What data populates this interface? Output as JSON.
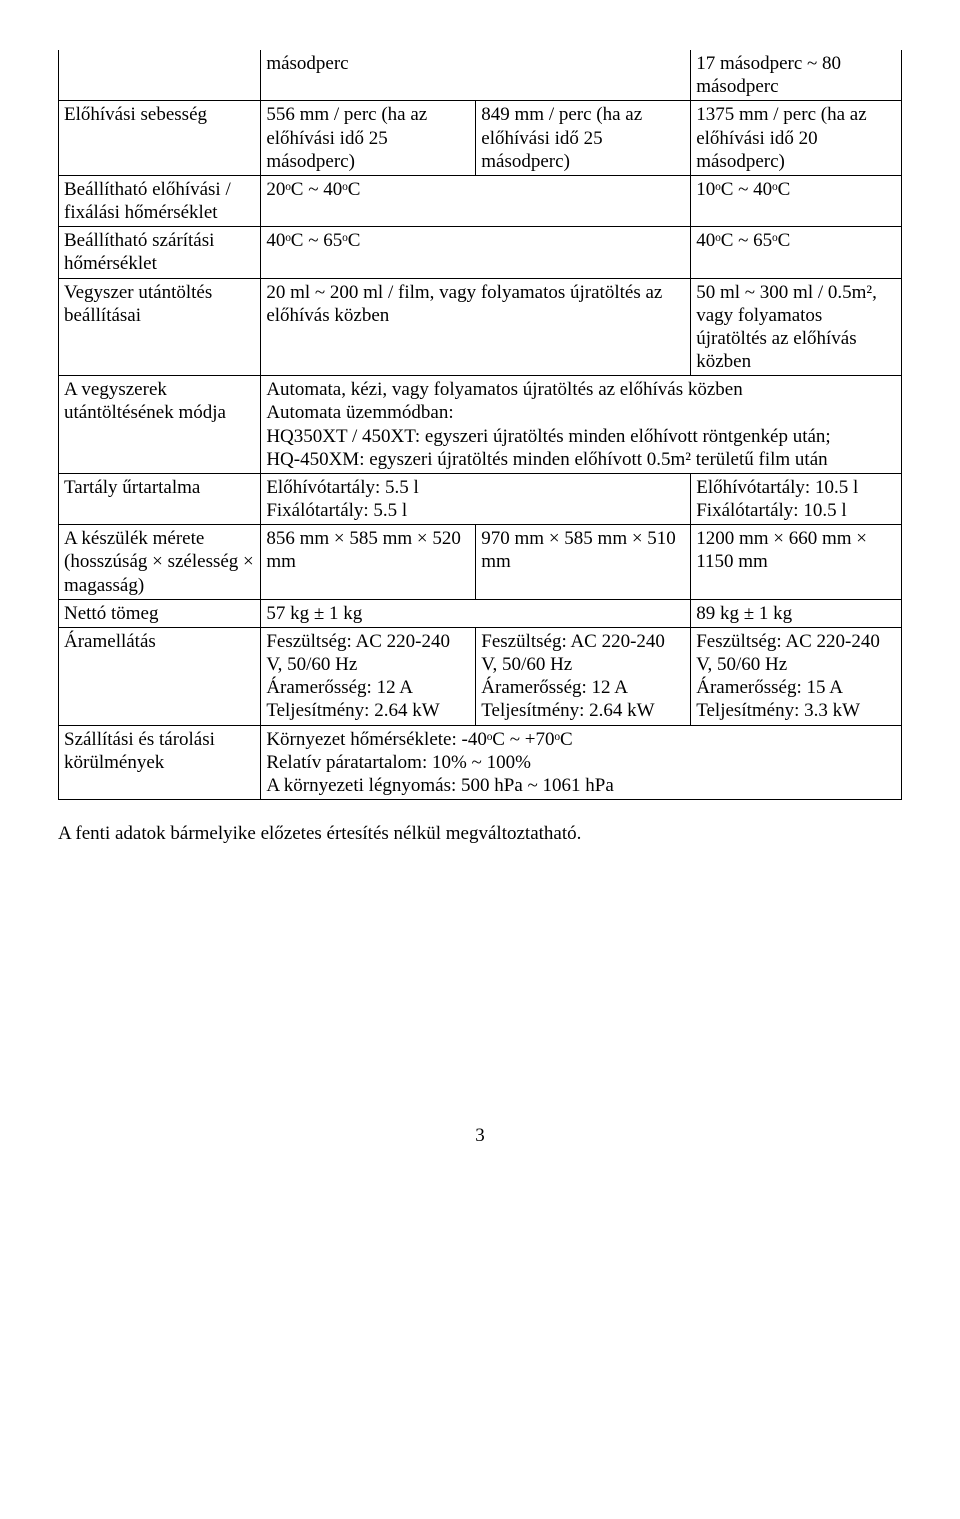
{
  "rows": {
    "r1": {
      "c1": "",
      "c2": "másodperc",
      "c3": "",
      "c4": "17 másodperc ~ 80 másodperc"
    },
    "r2": {
      "c1": "Előhívási sebesség",
      "c2": "556 mm / perc (ha az előhívási idő 25 másodperc)",
      "c3": "849 mm / perc (ha az előhívási idő 25 másodperc)",
      "c4": "1375 mm / perc (ha az előhívási idő 20 másodperc)"
    },
    "r3": {
      "c1": "Beállítható előhívási / fixálási hőmérséklet",
      "c2": "20ᵒC ~ 40ᵒC",
      "c4": "10ᵒC ~ 40ᵒC"
    },
    "r4": {
      "c1": "Beállítható szárítási hőmérséklet",
      "c2": "40ᵒC ~ 65ᵒC",
      "c4": "40ᵒC ~ 65ᵒC"
    },
    "r5": {
      "c1": "Vegyszer utántöltés beállításai",
      "c2": "20 ml ~ 200 ml / film, vagy folyamatos újratöltés az előhívás közben",
      "c4": "50 ml ~ 300 ml / 0.5m², vagy folyamatos újratöltés az előhívás közben"
    },
    "r6": {
      "c1": "A vegyszerek utántöltésének módja",
      "c2": "Automata, kézi, vagy folyamatos újratöltés az előhívás közben\nAutomata üzemmódban:\nHQ350XT / 450XT: egyszeri újratöltés minden előhívott röntgenkép után;\nHQ-450XM: egyszeri újratöltés minden előhívott 0.5m² területű film után"
    },
    "r7": {
      "c1": "Tartály űrtartalma",
      "c2": "Előhívótartály: 5.5 l\nFixálótartály: 5.5 l",
      "c4": "Előhívótartály: 10.5 l\nFixálótartály: 10.5 l"
    },
    "r8": {
      "c1": "A készülék mérete (hosszúság × szélesség × magasság)",
      "c2": "856 mm × 585 mm × 520 mm",
      "c3": "970 mm × 585 mm × 510 mm",
      "c4": "1200 mm × 660 mm × 1150 mm"
    },
    "r9": {
      "c1": "Nettó tömeg",
      "c2": " 57 kg ± 1 kg",
      "c4": "89 kg ± 1 kg"
    },
    "r10": {
      "c1": "Áramellátás",
      "c2": "Feszültség: AC 220-240 V, 50/60 Hz\nÁramerősség: 12 A\nTeljesítmény: 2.64 kW",
      "c3": "Feszültség: AC 220-240 V, 50/60 Hz\nÁramerősség: 12 A\nTeljesítmény: 2.64 kW",
      "c4": "Feszültség: AC 220-240 V, 50/60 Hz\nÁramerősség: 15 A\nTeljesítmény: 3.3 kW"
    },
    "r11": {
      "c1": "Szállítási és tárolási körülmények",
      "c2": "Környezet hőmérséklete: -40ᵒC ~ +70ᵒC\nRelatív páratartalom: 10% ~ 100%\nA környezeti légnyomás: 500 hPa ~ 1061 hPa"
    }
  },
  "afterNote": "A fenti adatok bármelyike előzetes értesítés nélkül megváltoztatható.",
  "pageNumber": "3",
  "style": {
    "font_family": "Times New Roman",
    "font_size_pt": 14,
    "text_color": "#000000",
    "background_color": "#ffffff",
    "border_color": "#000000",
    "column_widths_pct": [
      24,
      25.5,
      25.5,
      25
    ]
  }
}
